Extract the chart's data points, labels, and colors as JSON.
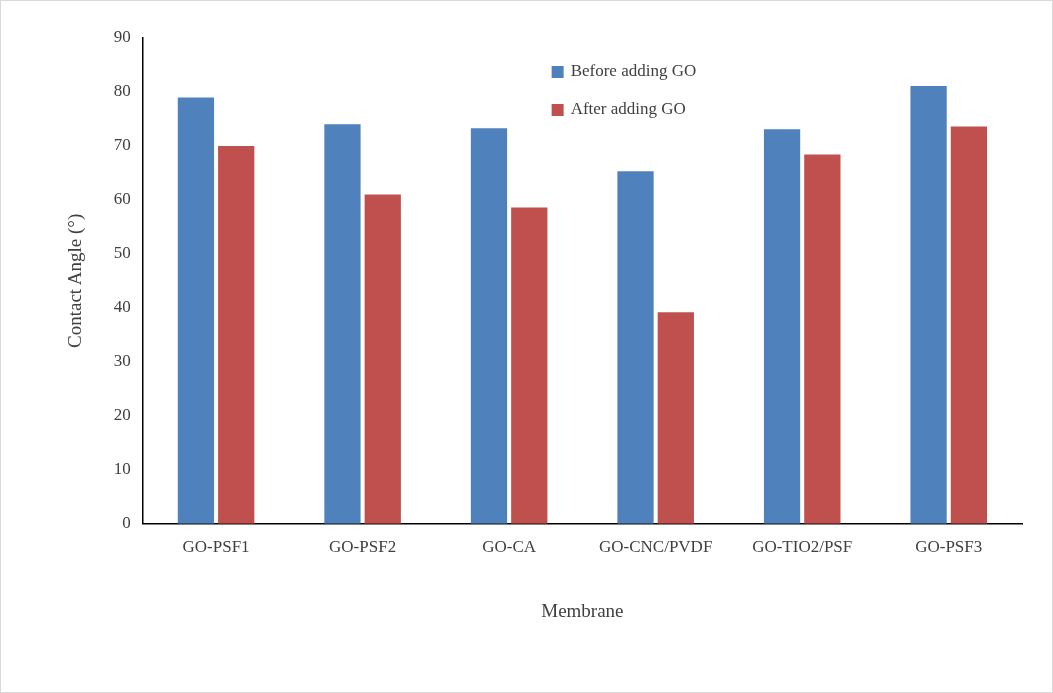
{
  "chart_data": {
    "type": "bar",
    "xlabel": "Membrane",
    "ylabel": "Contact Angle (°)",
    "categories": [
      "GO-PSF1",
      "GO-PSF2",
      "GO-CA",
      "GO-CNC/PVDF",
      "GO-TIO2/PSF",
      "GO-PSF3"
    ],
    "series": [
      {
        "name": "Before adding GO",
        "color": "#4f81bd",
        "values": [
          79,
          74,
          73.3,
          65.3,
          73.1,
          81.1
        ]
      },
      {
        "name": "After adding GO",
        "color": "#c0504d",
        "values": [
          70,
          61,
          58.6,
          39.2,
          68.4,
          73.6
        ]
      }
    ],
    "ylim": [
      0,
      90
    ],
    "yticks": [
      0,
      10,
      20,
      30,
      40,
      50,
      60,
      70,
      80,
      90
    ],
    "grid": false,
    "legend": "top"
  }
}
